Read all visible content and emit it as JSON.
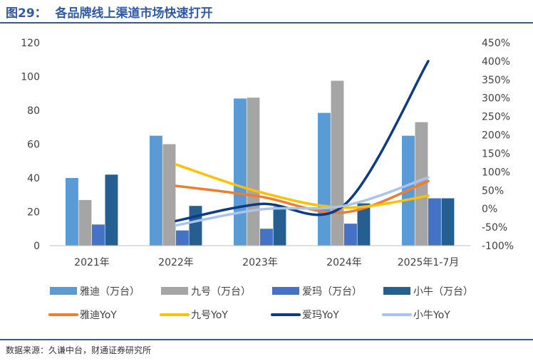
{
  "figure": {
    "title": "图29：  各品牌线上渠道市场快速打开",
    "source": "数据来源：久谦中台，财通证券研究所"
  },
  "chart_data": {
    "type": "bar",
    "categories": [
      "2021年",
      "2022年",
      "2023年",
      "2024年",
      "2025年1-7月"
    ],
    "y_left": {
      "ylim": [
        0,
        120
      ],
      "ticks": [
        0,
        20,
        40,
        60,
        80,
        100,
        120
      ]
    },
    "y_right": {
      "ylim": [
        -100,
        450
      ],
      "ticks": [
        -100,
        -50,
        0,
        50,
        100,
        150,
        200,
        250,
        300,
        350,
        400,
        450
      ],
      "format": "percent"
    },
    "grid": false,
    "legend_position": "bottom",
    "bar_series": [
      {
        "name": "雅迪（万台）",
        "color": "#5b9bd5",
        "values": [
          40,
          65,
          87,
          78.5,
          65
        ]
      },
      {
        "name": "九号（万台）",
        "color": "#a5a5a5",
        "values": [
          27,
          60,
          87.5,
          97.5,
          73
        ]
      },
      {
        "name": "爱玛（万台）",
        "color": "#4472c4",
        "values": [
          12.5,
          9,
          10,
          13,
          28
        ]
      },
      {
        "name": "小牛（万台）",
        "color": "#255e91",
        "values": [
          42,
          23.5,
          23,
          25,
          28
        ]
      }
    ],
    "line_series": [
      {
        "name": "雅迪YoY",
        "color": "#ed7d31",
        "values": [
          null,
          62,
          33,
          -10,
          75
        ]
      },
      {
        "name": "九号YoY",
        "color": "#ffc000",
        "values": [
          null,
          120,
          45,
          3,
          35
        ]
      },
      {
        "name": "爱玛YoY",
        "color": "#0b3c85",
        "values": [
          null,
          -33,
          13,
          10,
          400
        ]
      },
      {
        "name": "小牛YoY",
        "color": "#a9c4eb",
        "values": [
          null,
          -45,
          -2,
          8,
          85
        ]
      }
    ]
  }
}
